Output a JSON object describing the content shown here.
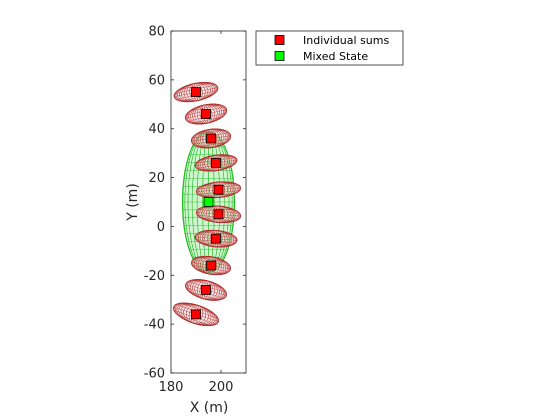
{
  "chart_data": {
    "type": "scatter",
    "xlabel": "X (m)",
    "ylabel": "Y (m)",
    "xlim": [
      180,
      210
    ],
    "ylim": [
      -60,
      80
    ],
    "xticks": [
      180,
      200
    ],
    "yticks": [
      -60,
      -40,
      -20,
      0,
      20,
      40,
      60,
      80
    ],
    "grid": false,
    "legend_position": "outside-top-right",
    "series": [
      {
        "name": "Individual sums",
        "marker": "square",
        "color": "#ff0000",
        "ellipse_color": "#b03030",
        "points": [
          {
            "x": 190,
            "y": 55,
            "rx": 9,
            "ry": 3.6,
            "tilt": 12
          },
          {
            "x": 194,
            "y": 46,
            "rx": 8.5,
            "ry": 3.8,
            "tilt": 12
          },
          {
            "x": 196,
            "y": 36,
            "rx": 8,
            "ry": 3.8,
            "tilt": 8
          },
          {
            "x": 198,
            "y": 26,
            "rx": 8.5,
            "ry": 3.2,
            "tilt": 8
          },
          {
            "x": 199,
            "y": 15,
            "rx": 9,
            "ry": 3.2,
            "tilt": 5
          },
          {
            "x": 199,
            "y": 5,
            "rx": 9,
            "ry": 3.4,
            "tilt": -5
          },
          {
            "x": 198,
            "y": -5,
            "rx": 8.5,
            "ry": 3.4,
            "tilt": -5
          },
          {
            "x": 196,
            "y": -16,
            "rx": 8,
            "ry": 3.6,
            "tilt": -10
          },
          {
            "x": 194,
            "y": -26,
            "rx": 8.5,
            "ry": 3.8,
            "tilt": -15
          },
          {
            "x": 190,
            "y": -36,
            "rx": 9.5,
            "ry": 3.8,
            "tilt": -18
          }
        ]
      },
      {
        "name": "Mixed State",
        "marker": "square",
        "color": "#00ff00",
        "ellipse_color": "#00b000",
        "points": [
          {
            "x": 195,
            "y": 10,
            "rx": 10.5,
            "ry": 29,
            "tilt": 0
          }
        ]
      }
    ]
  }
}
